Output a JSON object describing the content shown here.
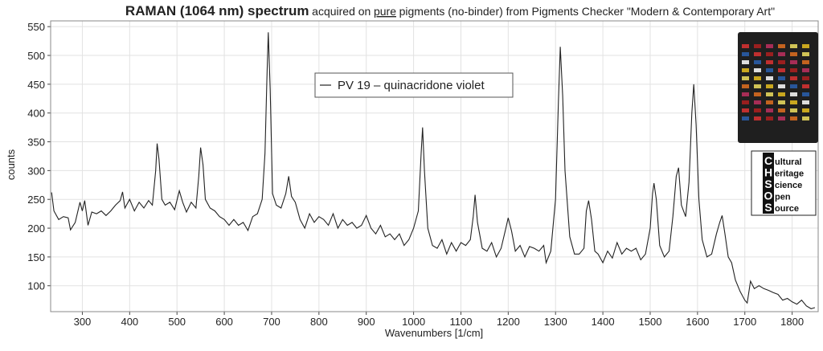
{
  "chart_data": {
    "type": "line",
    "title_parts": [
      "RAMAN (1064 nm) spectrum",
      "acquired on",
      "pure",
      "pigments (no-binder) from Pigments Checker \"Modern & Contemporary Art\""
    ],
    "xlabel": "Wavenumbers [1/cm]",
    "ylabel": "counts",
    "x": [
      235,
      240,
      250,
      260,
      270,
      275,
      285,
      295,
      300,
      305,
      312,
      320,
      330,
      340,
      350,
      360,
      370,
      380,
      385,
      390,
      400,
      410,
      420,
      430,
      440,
      448,
      455,
      458,
      462,
      468,
      475,
      485,
      495,
      505,
      512,
      520,
      530,
      540,
      546,
      550,
      555,
      560,
      570,
      580,
      590,
      600,
      610,
      620,
      630,
      640,
      650,
      660,
      670,
      680,
      686,
      690,
      693,
      697,
      702,
      710,
      720,
      730,
      736,
      742,
      750,
      760,
      770,
      780,
      790,
      800,
      810,
      820,
      830,
      840,
      850,
      860,
      870,
      880,
      890,
      900,
      910,
      920,
      930,
      940,
      950,
      960,
      970,
      980,
      990,
      1000,
      1010,
      1016,
      1019,
      1023,
      1030,
      1040,
      1050,
      1060,
      1070,
      1080,
      1090,
      1100,
      1110,
      1120,
      1126,
      1130,
      1135,
      1145,
      1155,
      1165,
      1175,
      1185,
      1195,
      1200,
      1207,
      1215,
      1225,
      1235,
      1245,
      1255,
      1265,
      1275,
      1280,
      1290,
      1300,
      1306,
      1310,
      1315,
      1320,
      1330,
      1340,
      1350,
      1360,
      1365,
      1370,
      1376,
      1383,
      1390,
      1400,
      1410,
      1420,
      1430,
      1440,
      1450,
      1460,
      1470,
      1480,
      1490,
      1500,
      1505,
      1508,
      1513,
      1520,
      1530,
      1540,
      1548,
      1555,
      1560,
      1566,
      1575,
      1582,
      1588,
      1592,
      1597,
      1603,
      1610,
      1620,
      1630,
      1640,
      1647,
      1652,
      1658,
      1665,
      1672,
      1680,
      1690,
      1700,
      1705,
      1712,
      1720,
      1730,
      1740,
      1750,
      1760,
      1770,
      1780,
      1790,
      1800,
      1810,
      1820,
      1830,
      1840,
      1848
    ],
    "series": [
      {
        "name": "PV 19 – quinacridone violet",
        "color": "#222222",
        "values": [
          262,
          230,
          215,
          220,
          218,
          197,
          210,
          245,
          230,
          248,
          205,
          228,
          225,
          230,
          222,
          230,
          240,
          248,
          263,
          235,
          250,
          230,
          245,
          235,
          248,
          240,
          300,
          347,
          320,
          250,
          240,
          245,
          232,
          265,
          245,
          228,
          245,
          235,
          290,
          340,
          310,
          250,
          235,
          230,
          220,
          215,
          205,
          215,
          205,
          210,
          196,
          220,
          225,
          250,
          330,
          460,
          540,
          440,
          260,
          240,
          235,
          260,
          290,
          255,
          245,
          215,
          200,
          225,
          210,
          220,
          215,
          205,
          225,
          200,
          215,
          205,
          210,
          200,
          205,
          222,
          200,
          190,
          205,
          185,
          190,
          180,
          190,
          170,
          180,
          200,
          230,
          330,
          375,
          300,
          200,
          170,
          165,
          180,
          155,
          175,
          160,
          175,
          170,
          180,
          220,
          258,
          210,
          165,
          160,
          175,
          150,
          165,
          200,
          218,
          195,
          160,
          170,
          150,
          168,
          165,
          160,
          170,
          140,
          160,
          250,
          420,
          515,
          430,
          300,
          185,
          155,
          155,
          165,
          230,
          248,
          215,
          160,
          155,
          140,
          160,
          148,
          175,
          155,
          165,
          160,
          165,
          145,
          155,
          200,
          260,
          278,
          250,
          170,
          150,
          160,
          220,
          290,
          305,
          240,
          220,
          280,
          400,
          450,
          380,
          250,
          180,
          150,
          155,
          190,
          210,
          222,
          190,
          150,
          140,
          110,
          90,
          75,
          70,
          108,
          95,
          100,
          95,
          92,
          88,
          85,
          75,
          78,
          72,
          68,
          75,
          65,
          60,
          62
        ]
      }
    ],
    "xlim": [
      233,
      1855
    ],
    "ylim": [
      55,
      560
    ],
    "xticks": [
      300,
      400,
      500,
      600,
      700,
      800,
      900,
      1000,
      1100,
      1200,
      1300,
      1400,
      1500,
      1600,
      1700,
      1800
    ],
    "yticks": [
      100,
      150,
      200,
      250,
      300,
      350,
      400,
      450,
      500,
      550
    ],
    "grid": true
  },
  "logo": {
    "letters": [
      "C",
      "H",
      "S",
      "O",
      "S"
    ],
    "words": [
      "ultural",
      "eritage",
      "cience",
      "pen",
      "ource"
    ]
  }
}
